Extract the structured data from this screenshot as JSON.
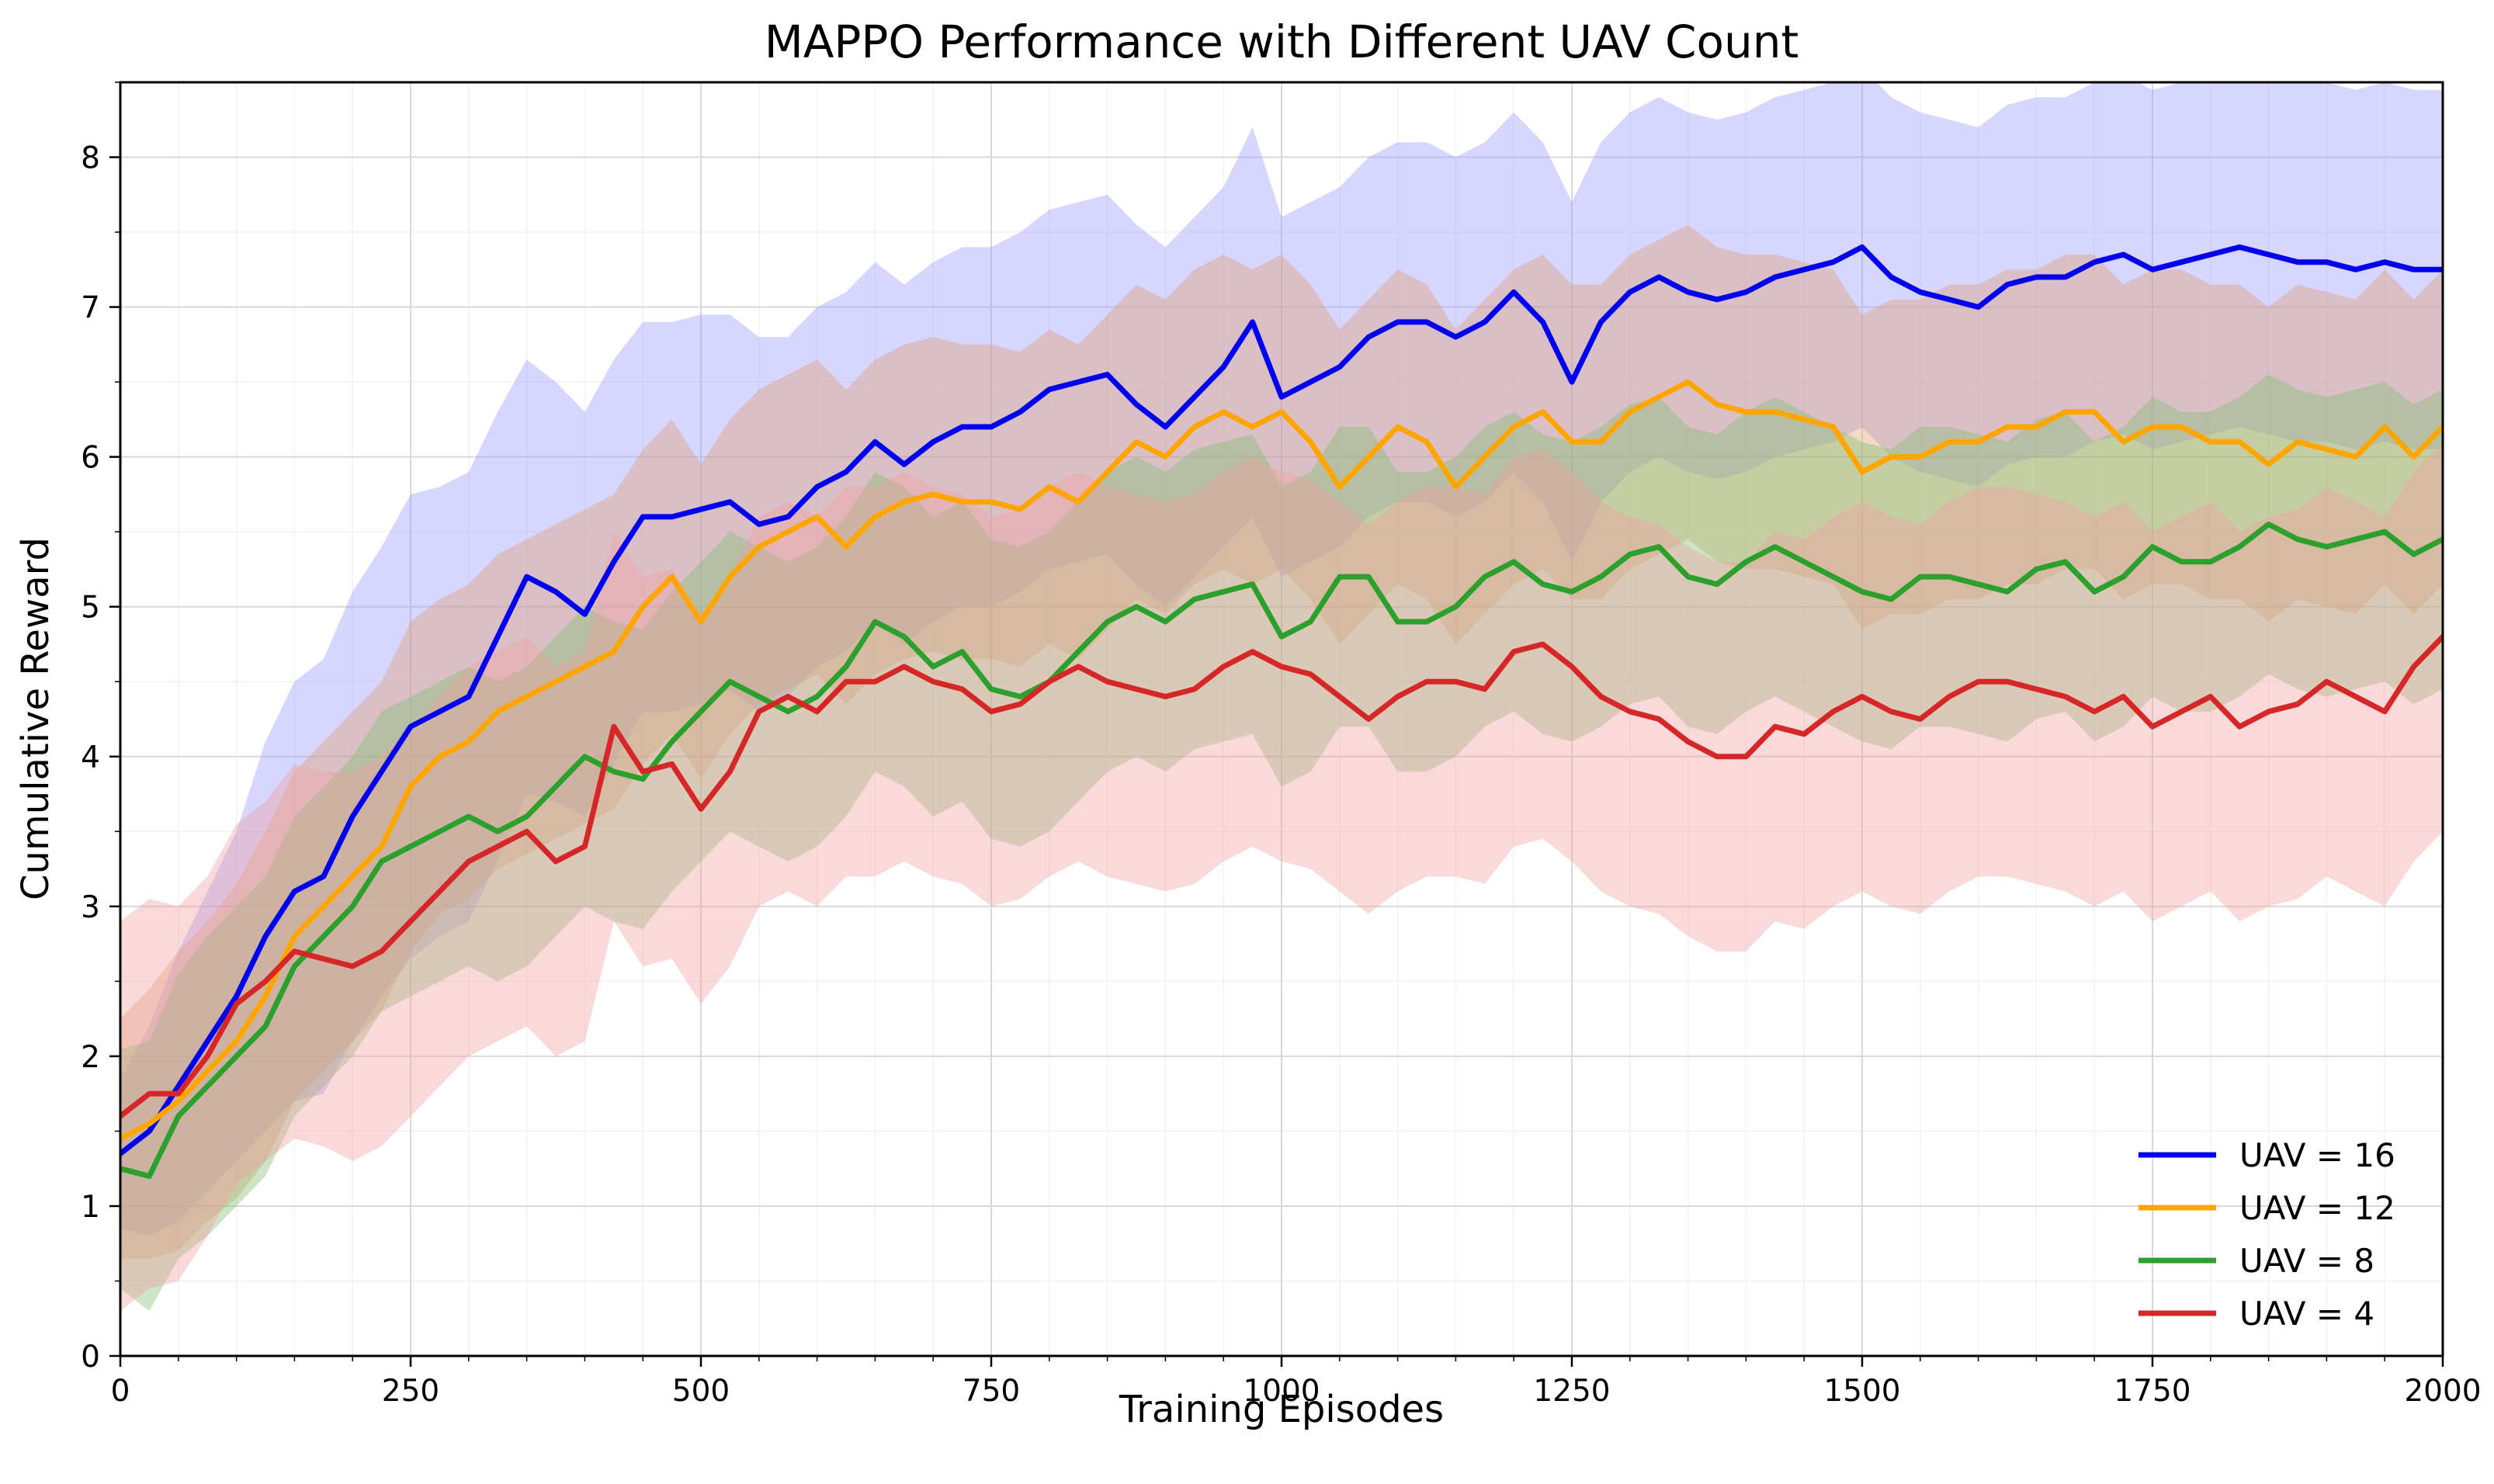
{
  "chart_data": {
    "type": "line",
    "title": "MAPPO Performance with Different UAV Count",
    "xlabel": "Training Episodes",
    "ylabel": "Cumulative Reward",
    "xlim": [
      0,
      2000
    ],
    "ylim": [
      0,
      8.5
    ],
    "xticks": [
      0,
      250,
      500,
      750,
      1000,
      1250,
      1500,
      1750,
      2000
    ],
    "yticks": [
      0,
      1,
      2,
      3,
      4,
      5,
      6,
      7,
      8
    ],
    "xtick_labels": [
      "0",
      "250",
      "500",
      "750",
      "1000",
      "1250",
      "1500",
      "1750",
      "2000"
    ],
    "ytick_labels": [
      "0",
      "1",
      "2",
      "3",
      "4",
      "5",
      "6",
      "7",
      "8"
    ],
    "grid": true,
    "legend_position": "lower-right",
    "series": [
      {
        "name": "UAV = 16",
        "color": "#0000ee",
        "band_color": "#9999ff",
        "x": [
          0,
          25,
          50,
          75,
          100,
          125,
          150,
          175,
          200,
          225,
          250,
          275,
          300,
          325,
          350,
          375,
          400,
          425,
          450,
          475,
          500,
          525,
          550,
          575,
          600,
          625,
          650,
          675,
          700,
          725,
          750,
          775,
          800,
          825,
          850,
          875,
          900,
          925,
          950,
          975,
          1000,
          1025,
          1050,
          1075,
          1100,
          1125,
          1150,
          1175,
          1200,
          1225,
          1250,
          1275,
          1300,
          1325,
          1350,
          1375,
          1400,
          1425,
          1450,
          1475,
          1500,
          1525,
          1550,
          1575,
          1600,
          1625,
          1650,
          1675,
          1700,
          1725,
          1750,
          1775,
          1800,
          1825,
          1850,
          1875,
          1900,
          1925,
          1950,
          1975,
          2000
        ],
        "values": [
          1.35,
          1.5,
          1.8,
          2.1,
          2.4,
          2.8,
          3.1,
          3.2,
          3.6,
          3.9,
          4.2,
          4.3,
          4.4,
          4.8,
          5.2,
          5.1,
          4.95,
          5.3,
          5.6,
          5.6,
          5.65,
          5.7,
          5.55,
          5.6,
          5.8,
          5.9,
          6.1,
          5.95,
          6.1,
          6.2,
          6.2,
          6.3,
          6.45,
          6.5,
          6.55,
          6.35,
          6.2,
          6.4,
          6.6,
          6.9,
          6.4,
          6.5,
          6.6,
          6.8,
          6.9,
          6.9,
          6.8,
          6.9,
          7.1,
          6.9,
          6.5,
          6.9,
          7.1,
          7.2,
          7.1,
          7.05,
          7.1,
          7.2,
          7.25,
          7.3,
          7.4,
          7.2,
          7.1,
          7.05,
          7.0,
          7.15,
          7.2,
          7.2,
          7.3,
          7.35,
          7.25,
          7.3,
          7.35,
          7.4,
          7.35,
          7.3,
          7.3,
          7.25,
          7.3,
          7.25,
          7.25
        ],
        "band": [
          0.5,
          0.7,
          0.9,
          1.0,
          1.1,
          1.3,
          1.4,
          1.45,
          1.5,
          1.5,
          1.55,
          1.5,
          1.5,
          1.5,
          1.45,
          1.4,
          1.35,
          1.35,
          1.3,
          1.3,
          1.3,
          1.25,
          1.25,
          1.2,
          1.2,
          1.2,
          1.2,
          1.2,
          1.2,
          1.2,
          1.2,
          1.2,
          1.2,
          1.2,
          1.2,
          1.2,
          1.2,
          1.2,
          1.2,
          1.3,
          1.2,
          1.2,
          1.2,
          1.2,
          1.2,
          1.2,
          1.2,
          1.2,
          1.2,
          1.2,
          1.2,
          1.2,
          1.2,
          1.2,
          1.2,
          1.2,
          1.2,
          1.2,
          1.2,
          1.2,
          1.2,
          1.2,
          1.2,
          1.2,
          1.2,
          1.2,
          1.2,
          1.2,
          1.2,
          1.2,
          1.2,
          1.2,
          1.2,
          1.2,
          1.2,
          1.2,
          1.2,
          1.2,
          1.2,
          1.2,
          1.2
        ]
      },
      {
        "name": "UAV = 12",
        "color": "#ffa500",
        "band_color": "#e0a070",
        "x": [
          0,
          25,
          50,
          75,
          100,
          125,
          150,
          175,
          200,
          225,
          250,
          275,
          300,
          325,
          350,
          375,
          400,
          425,
          450,
          475,
          500,
          525,
          550,
          575,
          600,
          625,
          650,
          675,
          700,
          725,
          750,
          775,
          800,
          825,
          850,
          875,
          900,
          925,
          950,
          975,
          1000,
          1025,
          1050,
          1075,
          1100,
          1125,
          1150,
          1175,
          1200,
          1225,
          1250,
          1275,
          1300,
          1325,
          1350,
          1375,
          1400,
          1425,
          1450,
          1475,
          1500,
          1525,
          1550,
          1575,
          1600,
          1625,
          1650,
          1675,
          1700,
          1725,
          1750,
          1775,
          1800,
          1825,
          1850,
          1875,
          1900,
          1925,
          1950,
          1975,
          2000
        ],
        "values": [
          1.45,
          1.55,
          1.7,
          1.9,
          2.1,
          2.4,
          2.8,
          3.0,
          3.2,
          3.4,
          3.8,
          4.0,
          4.1,
          4.3,
          4.4,
          4.5,
          4.6,
          4.7,
          5.0,
          5.2,
          4.9,
          5.2,
          5.4,
          5.5,
          5.6,
          5.4,
          5.6,
          5.7,
          5.75,
          5.7,
          5.7,
          5.65,
          5.8,
          5.7,
          5.9,
          6.1,
          6.0,
          6.2,
          6.3,
          6.2,
          6.3,
          6.1,
          5.8,
          6.0,
          6.2,
          6.1,
          5.8,
          6.0,
          6.2,
          6.3,
          6.1,
          6.1,
          6.3,
          6.4,
          6.5,
          6.35,
          6.3,
          6.3,
          6.25,
          6.2,
          5.9,
          6.0,
          6.0,
          6.1,
          6.1,
          6.2,
          6.2,
          6.3,
          6.3,
          6.1,
          6.2,
          6.2,
          6.1,
          6.1,
          5.95,
          6.1,
          6.05,
          6.0,
          6.2,
          6.0,
          6.2
        ],
        "band": [
          0.8,
          0.9,
          1.0,
          1.0,
          1.05,
          1.1,
          1.1,
          1.1,
          1.1,
          1.1,
          1.1,
          1.05,
          1.05,
          1.05,
          1.05,
          1.05,
          1.05,
          1.05,
          1.05,
          1.05,
          1.05,
          1.05,
          1.05,
          1.05,
          1.05,
          1.05,
          1.05,
          1.05,
          1.05,
          1.05,
          1.05,
          1.05,
          1.05,
          1.05,
          1.05,
          1.05,
          1.05,
          1.05,
          1.05,
          1.05,
          1.05,
          1.05,
          1.05,
          1.05,
          1.05,
          1.05,
          1.05,
          1.05,
          1.05,
          1.05,
          1.05,
          1.05,
          1.05,
          1.05,
          1.05,
          1.05,
          1.05,
          1.05,
          1.05,
          1.05,
          1.05,
          1.05,
          1.05,
          1.05,
          1.05,
          1.05,
          1.05,
          1.05,
          1.05,
          1.05,
          1.05,
          1.05,
          1.05,
          1.05,
          1.05,
          1.05,
          1.05,
          1.05,
          1.05,
          1.05,
          1.05
        ]
      },
      {
        "name": "UAV = 8",
        "color": "#2ca02c",
        "band_color": "#7fbf6f",
        "x": [
          0,
          25,
          50,
          75,
          100,
          125,
          150,
          175,
          200,
          225,
          250,
          275,
          300,
          325,
          350,
          375,
          400,
          425,
          450,
          475,
          500,
          525,
          550,
          575,
          600,
          625,
          650,
          675,
          700,
          725,
          750,
          775,
          800,
          825,
          850,
          875,
          900,
          925,
          950,
          975,
          1000,
          1025,
          1050,
          1075,
          1100,
          1125,
          1150,
          1175,
          1200,
          1225,
          1250,
          1275,
          1300,
          1325,
          1350,
          1375,
          1400,
          1425,
          1450,
          1475,
          1500,
          1525,
          1550,
          1575,
          1600,
          1625,
          1650,
          1675,
          1700,
          1725,
          1750,
          1775,
          1800,
          1825,
          1850,
          1875,
          1900,
          1925,
          1950,
          1975,
          2000
        ],
        "values": [
          1.25,
          1.2,
          1.6,
          1.8,
          2.0,
          2.2,
          2.6,
          2.8,
          3.0,
          3.3,
          3.4,
          3.5,
          3.6,
          3.5,
          3.6,
          3.8,
          4.0,
          3.9,
          3.85,
          4.1,
          4.3,
          4.5,
          4.4,
          4.3,
          4.4,
          4.6,
          4.9,
          4.8,
          4.6,
          4.7,
          4.45,
          4.4,
          4.5,
          4.7,
          4.9,
          5.0,
          4.9,
          5.05,
          5.1,
          5.15,
          4.8,
          4.9,
          5.2,
          5.2,
          4.9,
          4.9,
          5.0,
          5.2,
          5.3,
          5.15,
          5.1,
          5.2,
          5.35,
          5.4,
          5.2,
          5.15,
          5.3,
          5.4,
          5.3,
          5.2,
          5.1,
          5.05,
          5.2,
          5.2,
          5.15,
          5.1,
          5.25,
          5.3,
          5.1,
          5.2,
          5.4,
          5.3,
          5.3,
          5.4,
          5.55,
          5.45,
          5.4,
          5.45,
          5.5,
          5.35,
          5.45
        ],
        "band": [
          0.8,
          0.9,
          0.95,
          1.0,
          1.0,
          1.0,
          1.0,
          1.0,
          1.0,
          1.0,
          1.0,
          1.0,
          1.0,
          1.0,
          1.0,
          1.0,
          1.0,
          1.0,
          1.0,
          1.0,
          1.0,
          1.0,
          1.0,
          1.0,
          1.0,
          1.0,
          1.0,
          1.0,
          1.0,
          1.0,
          1.0,
          1.0,
          1.0,
          1.0,
          1.0,
          1.0,
          1.0,
          1.0,
          1.0,
          1.0,
          1.0,
          1.0,
          1.0,
          1.0,
          1.0,
          1.0,
          1.0,
          1.0,
          1.0,
          1.0,
          1.0,
          1.0,
          1.0,
          1.0,
          1.0,
          1.0,
          1.0,
          1.0,
          1.0,
          1.0,
          1.0,
          1.0,
          1.0,
          1.0,
          1.0,
          1.0,
          1.0,
          1.0,
          1.0,
          1.0,
          1.0,
          1.0,
          1.0,
          1.0,
          1.0,
          1.0,
          1.0,
          1.0,
          1.0,
          1.0,
          1.0
        ]
      },
      {
        "name": "UAV = 4",
        "color": "#d62728",
        "band_color": "#f0a0a0",
        "x": [
          0,
          25,
          50,
          75,
          100,
          125,
          150,
          175,
          200,
          225,
          250,
          275,
          300,
          325,
          350,
          375,
          400,
          425,
          450,
          475,
          500,
          525,
          550,
          575,
          600,
          625,
          650,
          675,
          700,
          725,
          750,
          775,
          800,
          825,
          850,
          875,
          900,
          925,
          950,
          975,
          1000,
          1025,
          1050,
          1075,
          1100,
          1125,
          1150,
          1175,
          1200,
          1225,
          1250,
          1275,
          1300,
          1325,
          1350,
          1375,
          1400,
          1425,
          1450,
          1475,
          1500,
          1525,
          1550,
          1575,
          1600,
          1625,
          1650,
          1675,
          1700,
          1725,
          1750,
          1775,
          1800,
          1825,
          1850,
          1875,
          1900,
          1925,
          1950,
          1975,
          2000
        ],
        "values": [
          1.6,
          1.75,
          1.75,
          2.0,
          2.35,
          2.5,
          2.7,
          2.65,
          2.6,
          2.7,
          2.9,
          3.1,
          3.3,
          3.4,
          3.5,
          3.3,
          3.4,
          4.2,
          3.9,
          3.95,
          3.65,
          3.9,
          4.3,
          4.4,
          4.3,
          4.5,
          4.5,
          4.6,
          4.5,
          4.45,
          4.3,
          4.35,
          4.5,
          4.6,
          4.5,
          4.45,
          4.4,
          4.45,
          4.6,
          4.7,
          4.6,
          4.55,
          4.4,
          4.25,
          4.4,
          4.5,
          4.5,
          4.45,
          4.7,
          4.75,
          4.6,
          4.4,
          4.3,
          4.25,
          4.1,
          4.0,
          4.0,
          4.2,
          4.15,
          4.3,
          4.4,
          4.3,
          4.25,
          4.4,
          4.5,
          4.5,
          4.45,
          4.4,
          4.3,
          4.4,
          4.2,
          4.3,
          4.4,
          4.2,
          4.3,
          4.35,
          4.5,
          4.4,
          4.3,
          4.6,
          4.8
        ],
        "band": [
          1.3,
          1.3,
          1.25,
          1.2,
          1.2,
          1.2,
          1.25,
          1.25,
          1.3,
          1.3,
          1.3,
          1.3,
          1.3,
          1.3,
          1.3,
          1.3,
          1.3,
          1.3,
          1.3,
          1.3,
          1.3,
          1.3,
          1.3,
          1.3,
          1.3,
          1.3,
          1.3,
          1.3,
          1.3,
          1.3,
          1.3,
          1.3,
          1.3,
          1.3,
          1.3,
          1.3,
          1.3,
          1.3,
          1.3,
          1.3,
          1.3,
          1.3,
          1.3,
          1.3,
          1.3,
          1.3,
          1.3,
          1.3,
          1.3,
          1.3,
          1.3,
          1.3,
          1.3,
          1.3,
          1.3,
          1.3,
          1.3,
          1.3,
          1.3,
          1.3,
          1.3,
          1.3,
          1.3,
          1.3,
          1.3,
          1.3,
          1.3,
          1.3,
          1.3,
          1.3,
          1.3,
          1.3,
          1.3,
          1.3,
          1.3,
          1.3,
          1.3,
          1.3,
          1.3,
          1.3,
          1.3
        ]
      }
    ]
  }
}
